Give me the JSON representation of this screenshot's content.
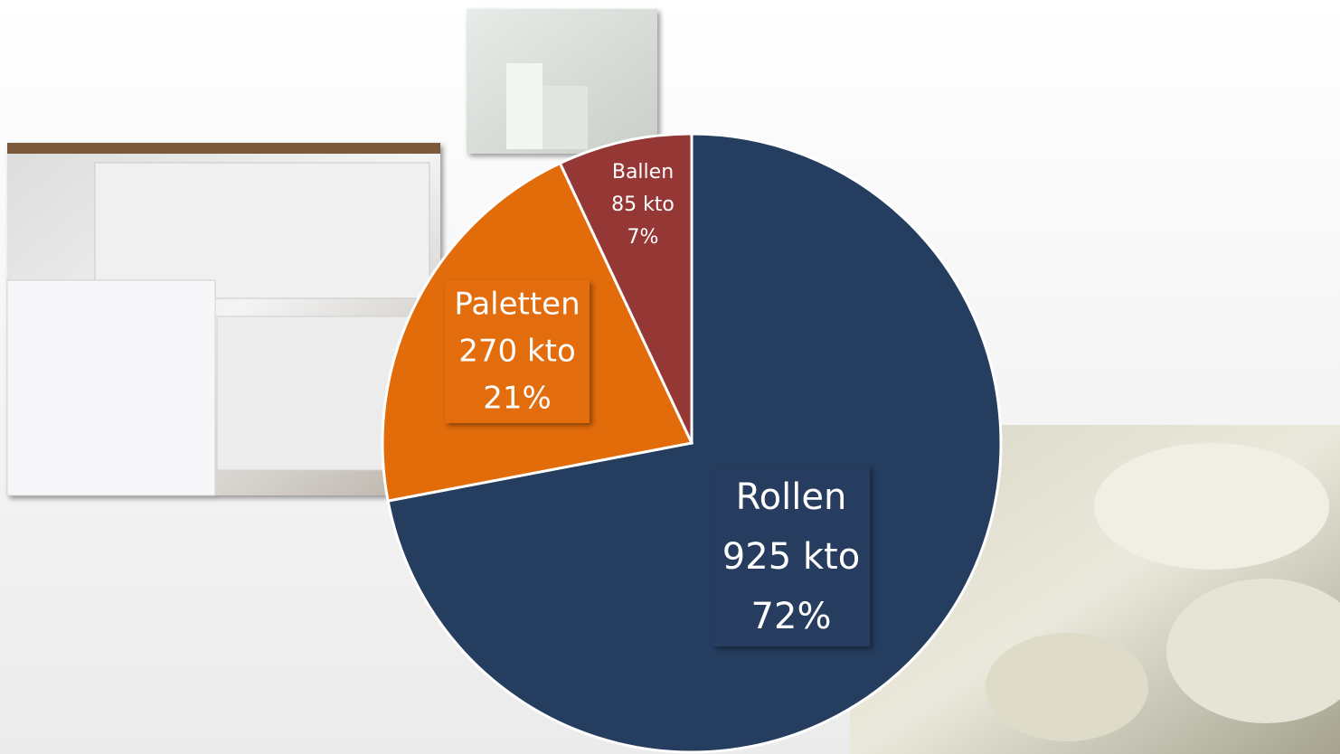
{
  "chart_data": {
    "type": "pie",
    "categories": [
      "Rollen",
      "Paletten",
      "Ballen"
    ],
    "values": [
      72,
      21,
      7
    ],
    "value_labels": [
      "72%",
      "21%",
      "7%"
    ],
    "amount_labels": [
      "925 kto",
      "270 kto",
      "85 kto"
    ],
    "colors": [
      "#253d5f",
      "#e36c0a",
      "#953735"
    ]
  }
}
